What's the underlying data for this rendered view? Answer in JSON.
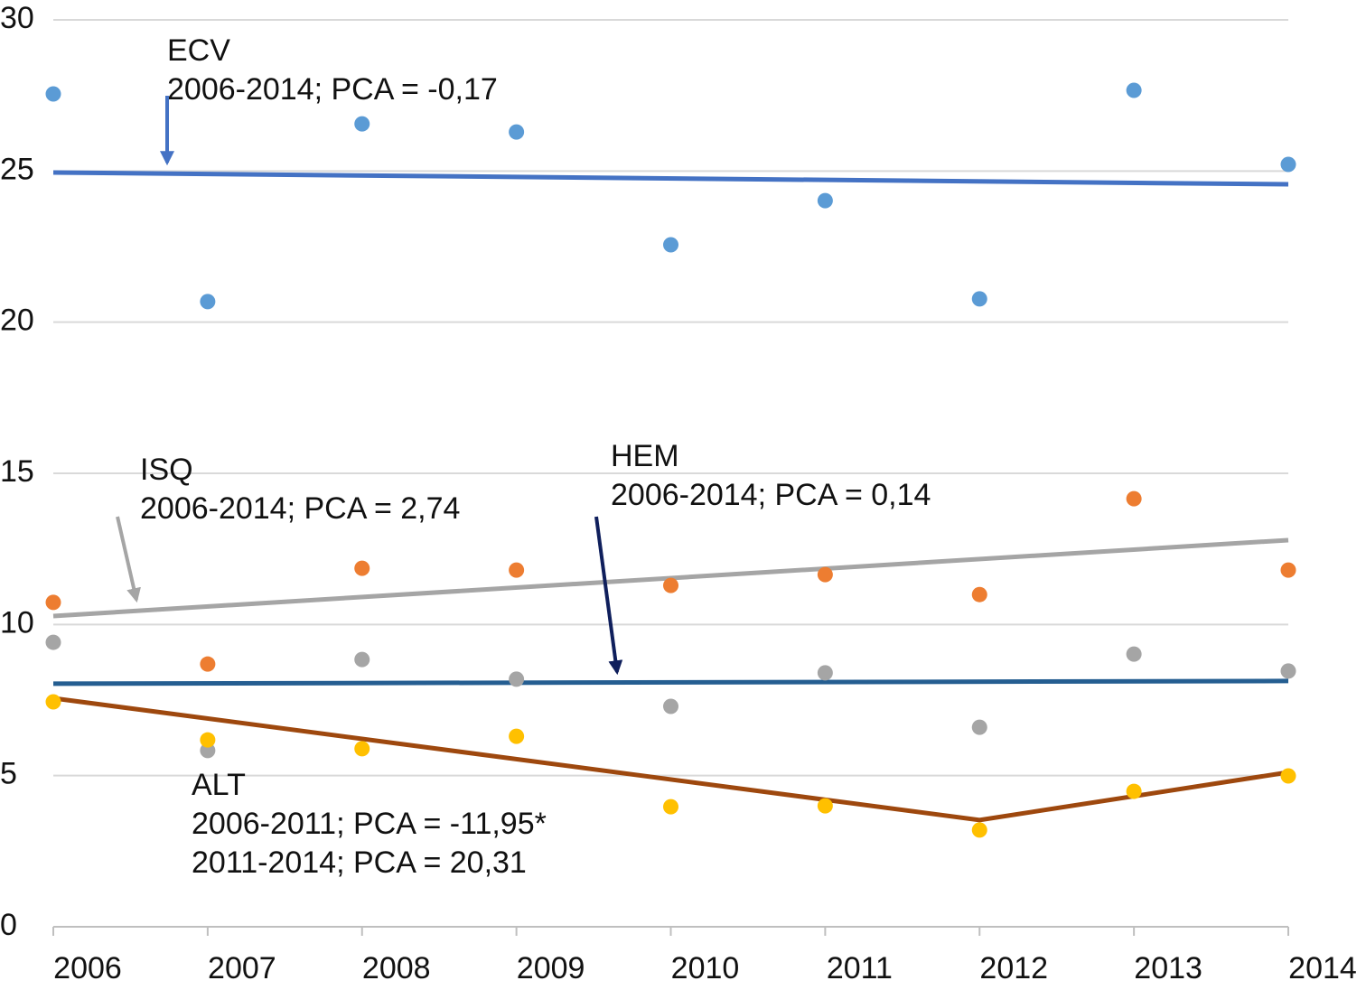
{
  "chart_data": {
    "type": "scatter",
    "x": [
      2006,
      2007,
      2008,
      2009,
      2010,
      2011,
      2012,
      2013,
      2014
    ],
    "xlim": [
      2006,
      2014
    ],
    "xticks": [
      2006,
      2007,
      2008,
      2009,
      2010,
      2011,
      2012,
      2013,
      2014
    ],
    "ylim": [
      0,
      30
    ],
    "yticks": [
      0,
      5,
      10,
      15,
      20,
      25,
      30
    ],
    "grid": true,
    "series": [
      {
        "color": "#5b9bd5",
        "values": [
          27.55,
          20.68,
          26.56,
          26.29,
          22.56,
          24.02,
          20.77,
          27.67,
          25.22
        ]
      },
      {
        "color": "#ed7d31",
        "values": [
          10.73,
          8.69,
          11.86,
          11.8,
          11.29,
          11.65,
          10.99,
          14.16,
          11.8
        ]
      },
      {
        "color": "#a5a5a5",
        "values": [
          9.41,
          5.83,
          8.84,
          8.19,
          7.29,
          8.4,
          6.6,
          9.02,
          8.46
        ]
      },
      {
        "color": "#ffc000",
        "values": [
          7.44,
          6.18,
          5.89,
          6.3,
          3.97,
          4.0,
          3.2,
          4.48,
          4.99
        ]
      }
    ],
    "trend_lines": [
      {
        "color": "#4472c4",
        "x": [
          2006,
          2014
        ],
        "values": [
          24.95,
          24.56
        ]
      },
      {
        "color": "#a5a5a5",
        "x": [
          2006,
          2014
        ],
        "values": [
          10.28,
          12.79
        ]
      },
      {
        "color": "#255e91",
        "x": [
          2006,
          2014
        ],
        "values": [
          8.04,
          8.13
        ]
      },
      {
        "color": "#9e480e",
        "x": [
          2006,
          2012,
          2014
        ],
        "values": [
          7.56,
          3.53,
          5.11
        ]
      }
    ],
    "annotations": [
      {
        "lines": [
          "ECV",
          "2006-2014; PCA = -0,17"
        ]
      },
      {
        "lines": [
          "ISQ",
          "2006-2014; PCA = 2,74"
        ]
      },
      {
        "lines": [
          "HEM",
          "2006-2014; PCA = 0,14"
        ]
      },
      {
        "lines": [
          "ALT",
          "2006-2011; PCA = -11,95*",
          "2011-2014; PCA = 20,31"
        ]
      }
    ]
  }
}
